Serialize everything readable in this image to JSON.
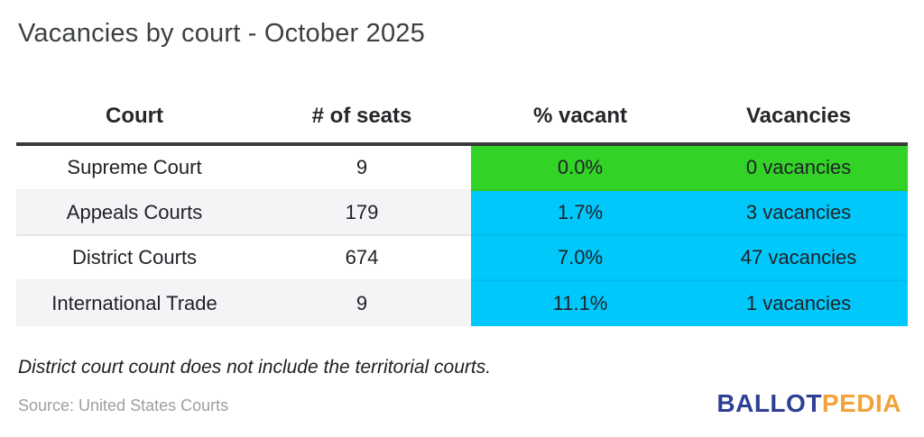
{
  "title": "Vacancies by court - October 2025",
  "chart_data": {
    "type": "table",
    "title": "Vacancies by court - October 2025",
    "columns": [
      "Court",
      "# of seats",
      "% vacant",
      "Vacancies"
    ],
    "rows": [
      [
        "Supreme Court",
        "9",
        "0.0%",
        "0 vacancies"
      ],
      [
        "Appeals Courts",
        "179",
        "1.7%",
        "3 vacancies"
      ],
      [
        "District Courts",
        "674",
        "7.0%",
        "47 vacancies"
      ],
      [
        "International Trade",
        "9",
        "11.1%",
        "1 vacancies"
      ]
    ],
    "highlighted_columns": [
      "% vacant",
      "Vacancies"
    ],
    "row_highlight_colors": [
      "#33D227",
      "#00C8FA",
      "#00C8FA",
      "#00C8FA"
    ],
    "numeric": {
      "seats": [
        9,
        179,
        674,
        9
      ],
      "pct_vacant": [
        0.0,
        1.7,
        7.0,
        11.1
      ],
      "vacancies": [
        0,
        3,
        47,
        1
      ]
    }
  },
  "footnote": "District court count does not include the territorial courts.",
  "source": "Source: United States Courts",
  "logo": {
    "part1": "BALLOT",
    "part2": "PEDIA"
  },
  "colors": {
    "green": "#33D227",
    "blue": "#00C8FA",
    "header_rule": "#3A3A3E",
    "logo_blue": "#2E3F94",
    "logo_gold": "#F2A33A"
  }
}
